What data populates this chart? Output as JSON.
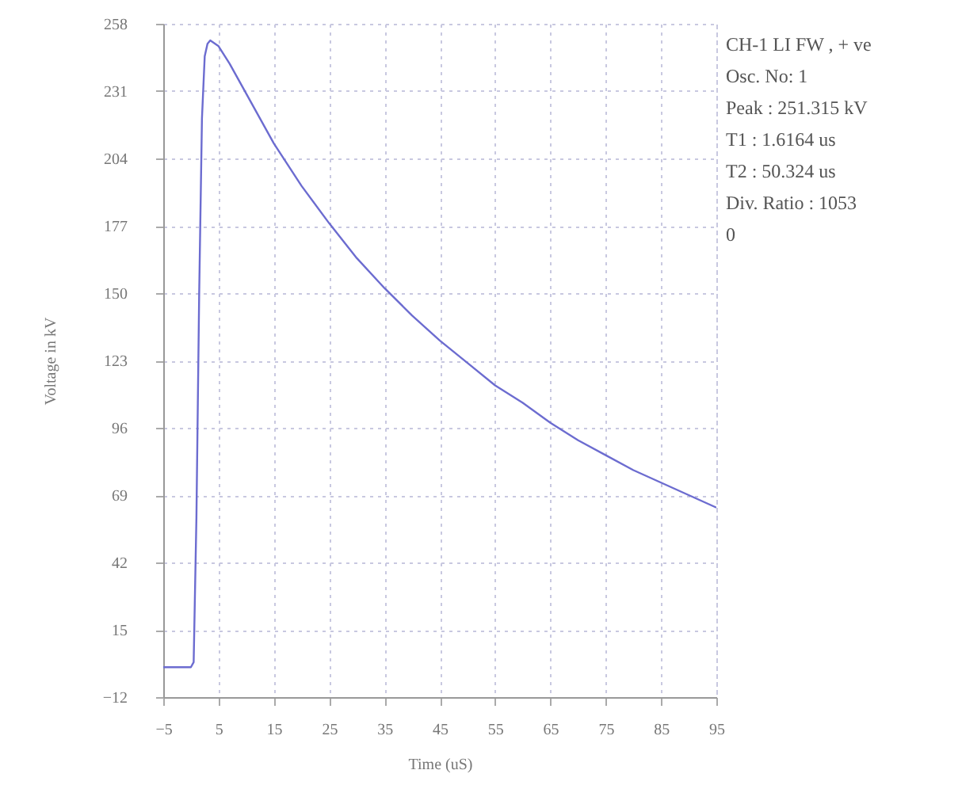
{
  "chart_data": {
    "type": "line",
    "xlabel": "Time (uS)",
    "ylabel": "Voltage in kV",
    "x": [
      -5,
      0,
      0.5,
      1,
      1.5,
      2,
      2.5,
      3,
      3.5,
      5,
      7,
      10,
      15,
      20,
      25,
      30,
      35,
      40,
      45,
      50,
      55,
      60,
      65,
      70,
      75,
      80,
      85,
      90,
      95
    ],
    "series": [
      {
        "color": "#6c6cd0",
        "values": [
          0,
          0,
          2,
          60,
          150,
          220,
          245,
          250,
          251.3,
          249,
          242,
          230,
          210,
          193,
          178,
          164,
          152,
          141,
          131,
          122,
          113,
          106,
          98,
          91,
          85,
          79,
          74,
          69,
          64
        ]
      }
    ],
    "xlim": [
      -5,
      95
    ],
    "xticks": [
      -5,
      5,
      15,
      25,
      35,
      45,
      55,
      65,
      75,
      85,
      95
    ],
    "ylim": [
      -12,
      258
    ],
    "yticks": [
      -12,
      15,
      42,
      69,
      96,
      123,
      150,
      177,
      204,
      231,
      258
    ],
    "grid": true,
    "marker": "none",
    "line_style": "solid",
    "annotations": [
      "CH-1 LI FW , + ve",
      "Osc. No: 1",
      "Peak : 251.315 kV",
      "T1 : 1.6164 us",
      "T2 : 50.324 us",
      "Div. Ratio : 1053",
      "0"
    ]
  }
}
